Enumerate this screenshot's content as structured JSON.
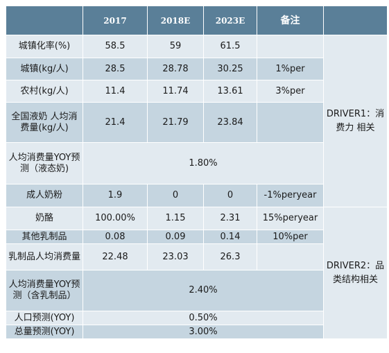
{
  "header": [
    "",
    "2017",
    "2018E",
    "2023E",
    "备注",
    ""
  ],
  "rows": {
    "r1": {
      "label": "城镇化率(%)",
      "v2017": "58.5",
      "v2018": "59",
      "v2023": "61.5",
      "note": ""
    },
    "r2": {
      "label": "城镇(kg/人)",
      "v2017": "28.5",
      "v2018": "28.78",
      "v2023": "30.25",
      "note": "1%per"
    },
    "r3": {
      "label": "农村(kg/人)",
      "v2017": "11.4",
      "v2018": "11.74",
      "v2023": "13.61",
      "note": "3%per"
    },
    "r4": {
      "label": "全国液奶 人均消费量(kg/人)",
      "v2017": "21.4",
      "v2018": "21.79",
      "v2023": "23.84",
      "note": ""
    },
    "r5": {
      "label": "人均消费量YOY预测（液态奶)",
      "merged": "1.80%"
    },
    "r6": {
      "label": "成人奶粉",
      "v2017": "1.9",
      "v2018": "0",
      "v2023": "0",
      "note": "-1%peryear"
    },
    "r7": {
      "label": "奶酪",
      "v2017": "100.00%",
      "v2018": "1.15",
      "v2023": "2.31",
      "note": "15%peryear"
    },
    "r8": {
      "label": "其他乳制品",
      "v2017": "0.08",
      "v2018": "0.09",
      "v2023": "0.14",
      "note": "10%per"
    },
    "r9": {
      "label": "乳制品人均消费量",
      "v2017": "22.48",
      "v2018": "23.03",
      "v2023": "26.3",
      "note": ""
    },
    "r10": {
      "label": "人均消费量YOY预测（含乳制品）",
      "merged": "2.40%"
    },
    "r11": {
      "label": "人口预测(YOY)",
      "merged": "0.50%"
    },
    "r12": {
      "label": "总量预测(YOY)",
      "merged": "3.00%"
    }
  },
  "drivers": {
    "d1": "DRIVER1：消费力 相关",
    "d2": "DRIVER2：品类结构相关"
  }
}
